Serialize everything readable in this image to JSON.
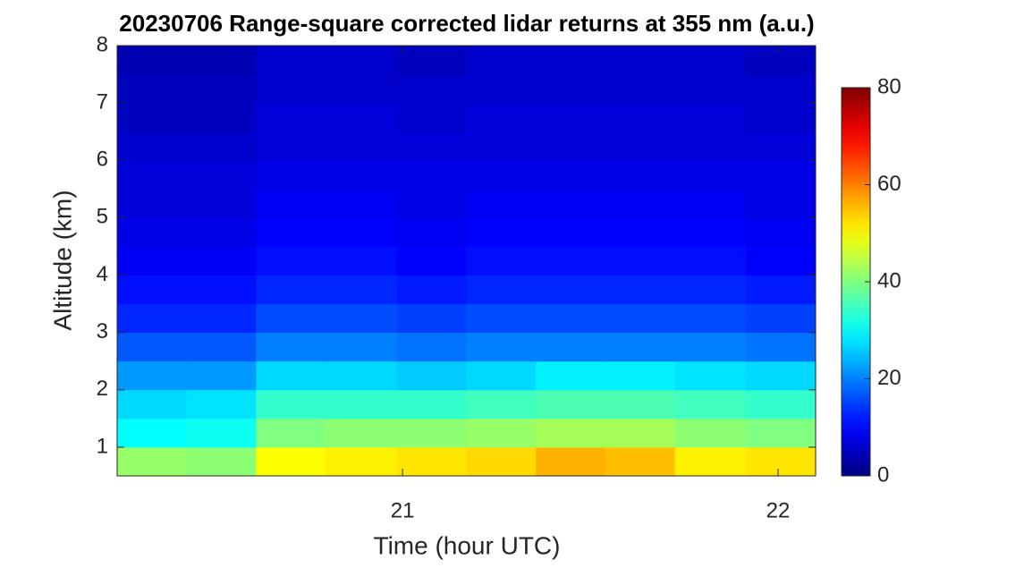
{
  "chart_data": {
    "type": "heatmap",
    "title": "20230706  Range-square corrected lidar returns at 355 nm (a.u.)",
    "xlabel": "Time (hour UTC)",
    "ylabel": "Altitude (km)",
    "x": [
      20.33,
      20.52,
      20.7,
      20.89,
      21.08,
      21.26,
      21.45,
      21.63,
      21.82,
      22.01
    ],
    "y": [
      0.75,
      1.25,
      1.75,
      2.25,
      2.75,
      3.25,
      3.75,
      4.25,
      4.75,
      5.25,
      5.75,
      6.25,
      6.75,
      7.25,
      7.75
    ],
    "z": [
      [
        42,
        41,
        50,
        51,
        52,
        53,
        56,
        55,
        51,
        52
      ],
      [
        30,
        31,
        40,
        41,
        41,
        42,
        43,
        43,
        41,
        40
      ],
      [
        27,
        28,
        34,
        34,
        34,
        35,
        36,
        36,
        35,
        34
      ],
      [
        22,
        22,
        27,
        27,
        26,
        27,
        29,
        29,
        28,
        27
      ],
      [
        17,
        17,
        20,
        20,
        19,
        20,
        20,
        20,
        20,
        19
      ],
      [
        13,
        13,
        16,
        16,
        15,
        16,
        16,
        16,
        16,
        15
      ],
      [
        11,
        11,
        13,
        13,
        12,
        13,
        13,
        13,
        13,
        12
      ],
      [
        9,
        9,
        11,
        11,
        10,
        11,
        11,
        11,
        11,
        10
      ],
      [
        8,
        8,
        10,
        10,
        9,
        10,
        10,
        10,
        10,
        9
      ],
      [
        7,
        7,
        9,
        9,
        8,
        9,
        9,
        9,
        9,
        8
      ],
      [
        7,
        7,
        8,
        8,
        8,
        8,
        8,
        8,
        8,
        8
      ],
      [
        6,
        6,
        7,
        7,
        7,
        7,
        7,
        7,
        7,
        7
      ],
      [
        5,
        5,
        7,
        7,
        6,
        7,
        7,
        7,
        7,
        6
      ],
      [
        5,
        5,
        6,
        6,
        6,
        6,
        6,
        6,
        6,
        6
      ],
      [
        4,
        4,
        6,
        6,
        5,
        6,
        6,
        6,
        6,
        5
      ]
    ],
    "xlim": [
      20.24,
      22.1
    ],
    "xticks": [
      21,
      22
    ],
    "ylim": [
      0.5,
      8
    ],
    "yticks": [
      1,
      2,
      3,
      4,
      5,
      6,
      7,
      8
    ],
    "colormap": "jet",
    "clim": [
      0,
      80
    ],
    "cticks": [
      0,
      20,
      40,
      60,
      80
    ]
  }
}
